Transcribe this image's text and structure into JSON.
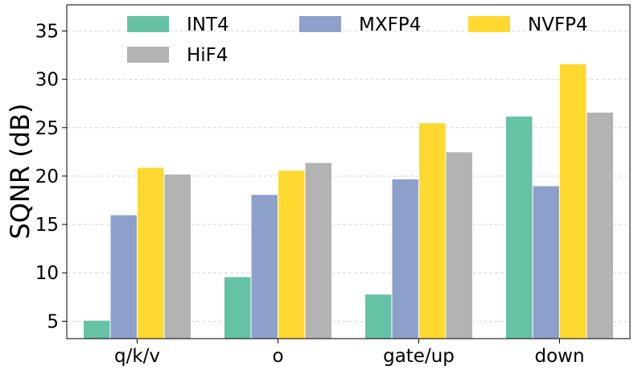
{
  "chart_data": {
    "type": "bar",
    "title": "",
    "xlabel": "",
    "ylabel": "SQNR (dB)",
    "categories": [
      "q/k/v",
      "o",
      "gate/up",
      "down"
    ],
    "ylim": [
      3.2,
      37.7
    ],
    "yticks": [
      5,
      10,
      15,
      20,
      25,
      30,
      35
    ],
    "grid": "horizontal dashed",
    "legend": {
      "placement": "top",
      "columns": 3
    },
    "series": [
      {
        "name": "INT4",
        "color": "#66c2a5",
        "values": [
          5.1,
          9.6,
          7.8,
          26.2
        ]
      },
      {
        "name": "MXFP4",
        "color": "#8da0cb",
        "values": [
          16.0,
          18.1,
          19.7,
          19.0
        ]
      },
      {
        "name": "NVFP4",
        "color": "#ffd92f",
        "values": [
          20.9,
          20.6,
          25.5,
          31.6
        ]
      },
      {
        "name": "HiF4",
        "color": "#b3b3b3",
        "values": [
          20.2,
          21.4,
          22.5,
          26.6
        ]
      }
    ]
  }
}
